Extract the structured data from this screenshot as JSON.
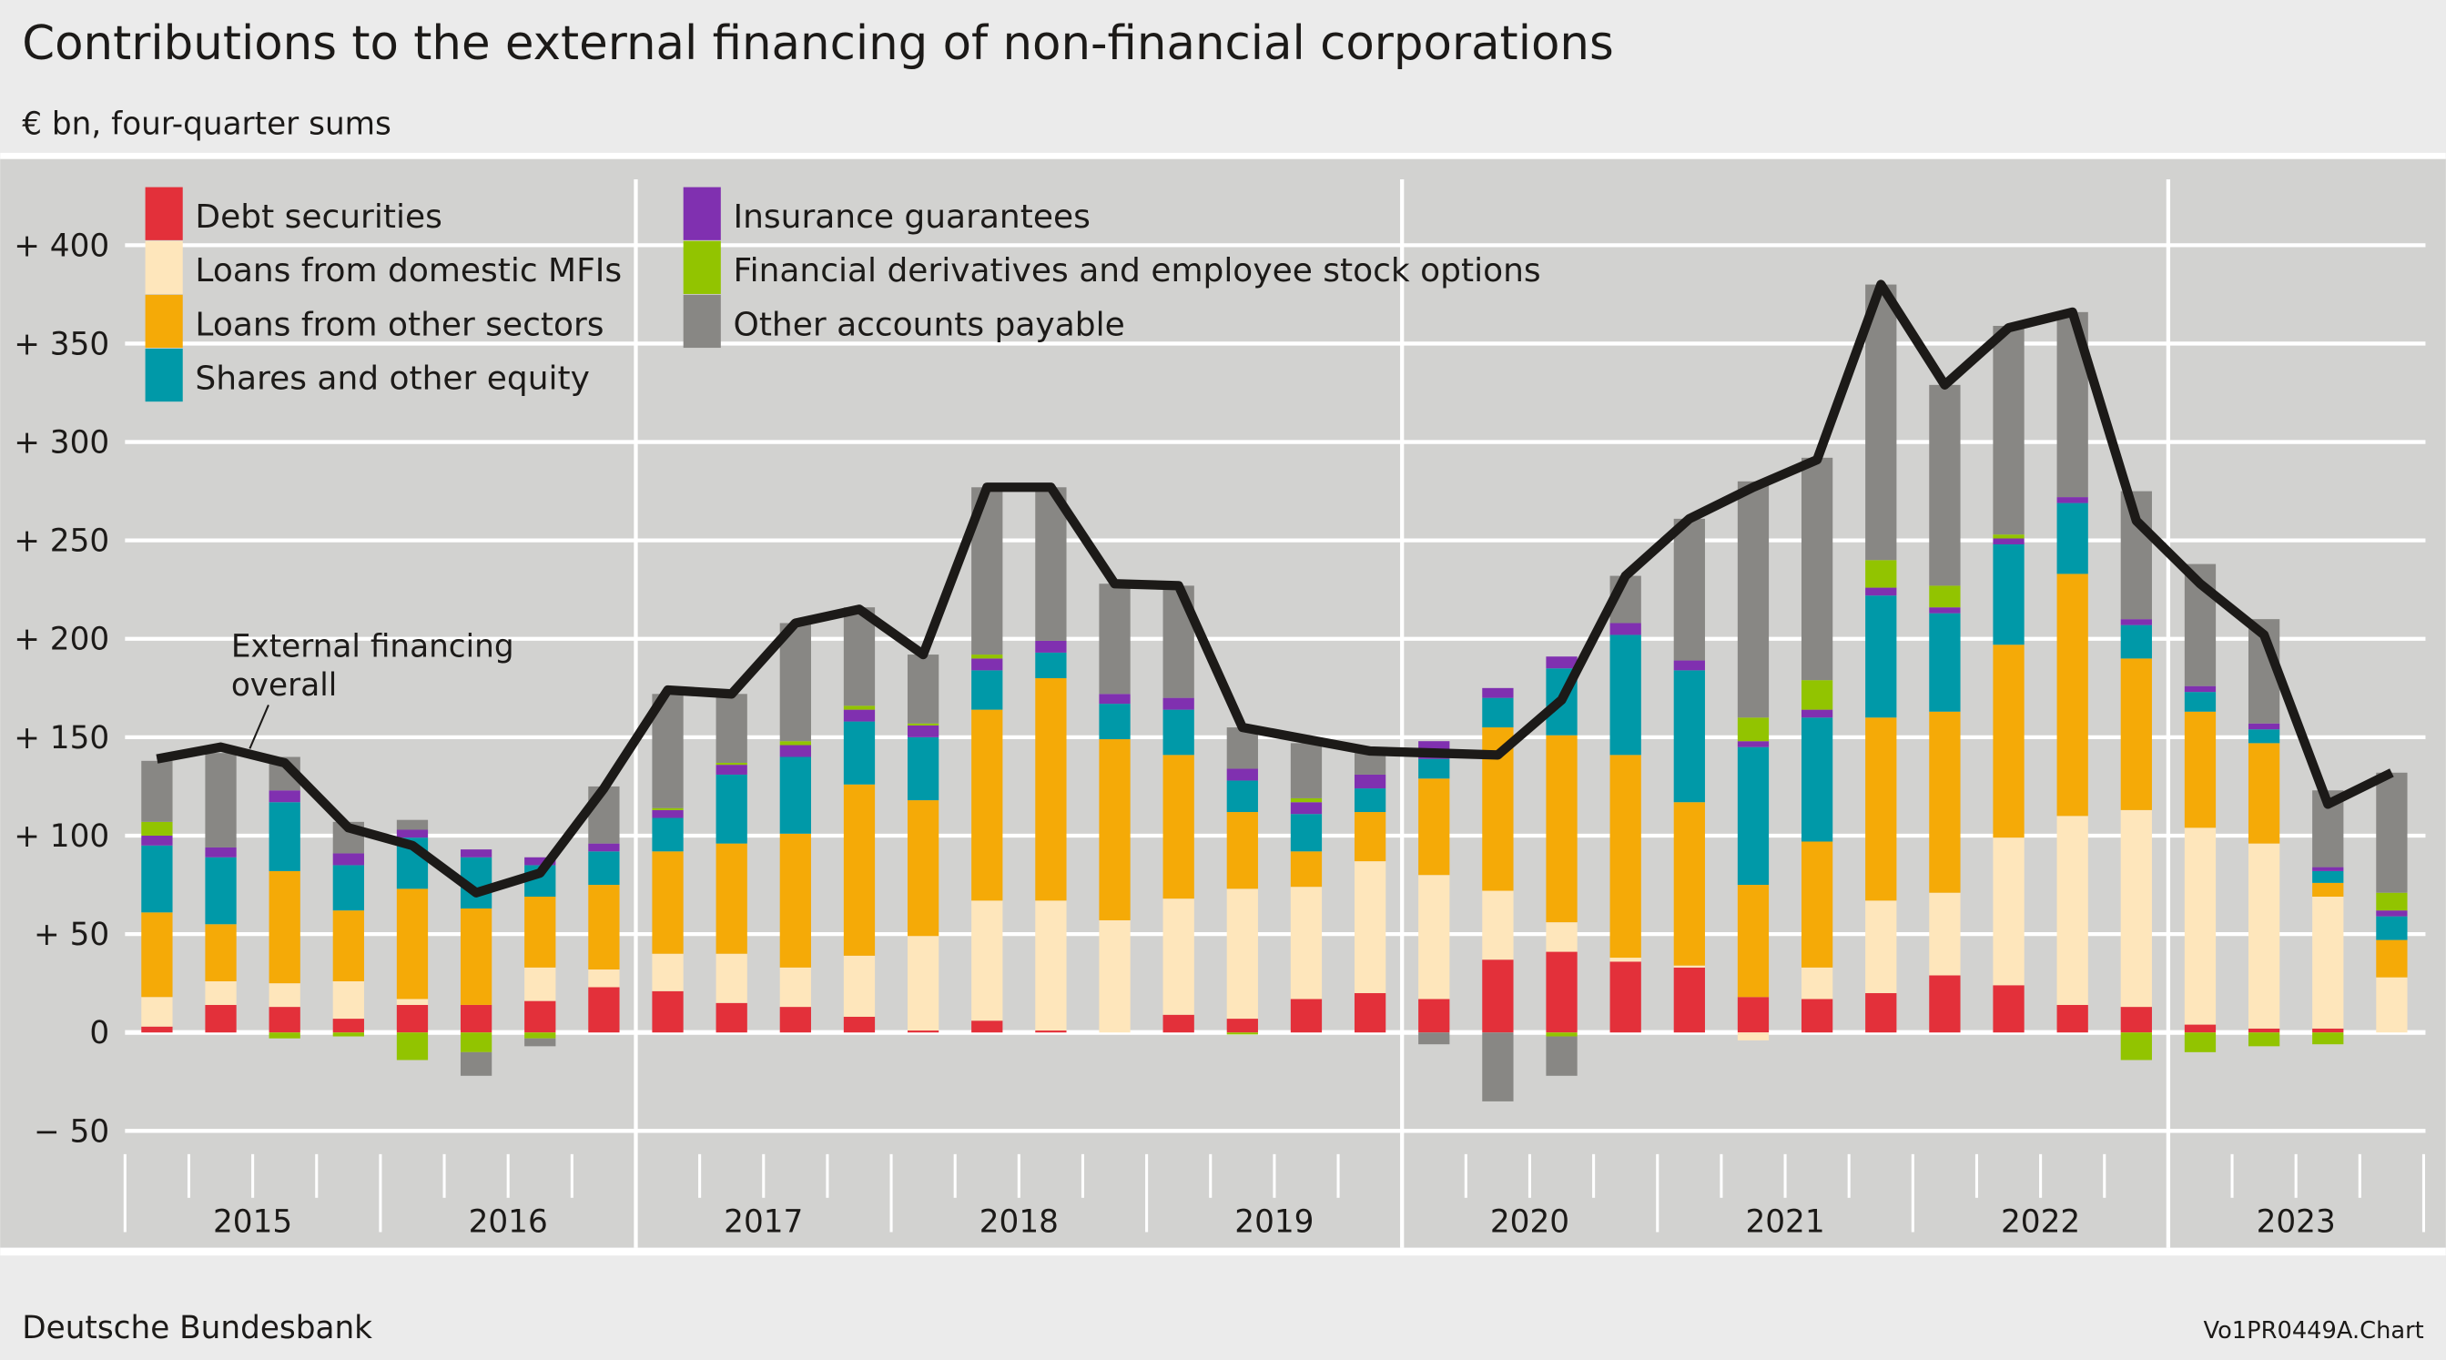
{
  "header": {
    "title": "Contributions to the external financing of non-financial corporations",
    "subtitle": "€ bn, four-quarter sums"
  },
  "footer": {
    "source": "Deutsche Bundesbank",
    "chart_id": "Vo1PR0449A.Chart"
  },
  "chart_data": {
    "type": "bar",
    "stacked": true,
    "title": "Contributions to the external financing of non-financial corporations",
    "ylabel": "€ bn, four-quarter sums",
    "ylim": [
      -50,
      430
    ],
    "yticks": [
      400,
      350,
      300,
      250,
      200,
      150,
      100,
      50,
      0,
      -50
    ],
    "ytick_labels": [
      "+ 400",
      "+ 350",
      "+ 300",
      "+ 250",
      "+ 200",
      "+ 150",
      "+ 100",
      "+  50",
      "0",
      "−  50"
    ],
    "grid": true,
    "legend_position": "top-left",
    "year_labels": [
      "2015",
      "2016",
      "2017",
      "2018",
      "2019",
      "2020",
      "2021",
      "2022",
      "2023"
    ],
    "x": [
      "2015Q1",
      "2015Q2",
      "2015Q3",
      "2015Q4",
      "2016Q1",
      "2016Q2",
      "2016Q3",
      "2016Q4",
      "2017Q1",
      "2017Q2",
      "2017Q3",
      "2017Q4",
      "2018Q1",
      "2018Q2",
      "2018Q3",
      "2018Q4",
      "2019Q1",
      "2019Q2",
      "2019Q3",
      "2019Q4",
      "2020Q1",
      "2020Q2",
      "2020Q3",
      "2020Q4",
      "2021Q1",
      "2021Q2",
      "2021Q3",
      "2021Q4",
      "2022Q1",
      "2022Q2",
      "2022Q3",
      "2022Q4",
      "2023Q1",
      "2023Q2",
      "2023Q3",
      "2023Q4"
    ],
    "series": [
      {
        "name": "Debt securities",
        "color": "#e3303a",
        "values": [
          3,
          14,
          13,
          7,
          14,
          14,
          16,
          23,
          21,
          15,
          13,
          8,
          1,
          6,
          1,
          0,
          9,
          7,
          17,
          20,
          17,
          37,
          41,
          36,
          33,
          18,
          17,
          20,
          29,
          24,
          14,
          13,
          4,
          2,
          2,
          0
        ]
      },
      {
        "name": "Loans from domestic MFIs",
        "color": "#fee6bb",
        "values": [
          15,
          12,
          12,
          19,
          3,
          0,
          17,
          9,
          19,
          25,
          20,
          31,
          48,
          61,
          66,
          57,
          59,
          66,
          57,
          67,
          63,
          35,
          15,
          2,
          1,
          -4,
          16,
          47,
          42,
          75,
          96,
          100,
          100,
          94,
          67,
          28
        ]
      },
      {
        "name": "Loans from other sectors",
        "color": "#f5aa07",
        "values": [
          43,
          29,
          57,
          36,
          56,
          49,
          36,
          43,
          52,
          56,
          68,
          87,
          69,
          97,
          113,
          92,
          73,
          39,
          18,
          25,
          49,
          83,
          95,
          103,
          83,
          57,
          64,
          93,
          92,
          98,
          123,
          77,
          59,
          51,
          7,
          19
        ]
      },
      {
        "name": "Shares and other equity",
        "color": "#0099a8",
        "values": [
          34,
          34,
          35,
          23,
          26,
          26,
          16,
          17,
          17,
          35,
          39,
          32,
          32,
          20,
          13,
          18,
          23,
          16,
          19,
          12,
          10,
          15,
          34,
          61,
          67,
          70,
          63,
          62,
          50,
          51,
          36,
          17,
          10,
          7,
          6,
          12
        ]
      },
      {
        "name": "Insurance guarantees",
        "color": "#8030b0",
        "values": [
          5,
          5,
          6,
          6,
          4,
          4,
          4,
          4,
          4,
          5,
          6,
          6,
          6,
          6,
          6,
          5,
          6,
          6,
          6,
          7,
          9,
          5,
          6,
          6,
          5,
          3,
          4,
          4,
          3,
          3,
          3,
          3,
          3,
          3,
          2,
          3
        ]
      },
      {
        "name": "Financial derivatives and employee stock options",
        "color": "#92c400",
        "values": [
          7,
          0,
          -3,
          -2,
          -14,
          -10,
          -3,
          0,
          1,
          1,
          2,
          2,
          1,
          2,
          0,
          0,
          0,
          -1,
          2,
          0,
          0,
          0,
          -2,
          0,
          0,
          12,
          15,
          14,
          11,
          2,
          0,
          -14,
          -10,
          -7,
          -6,
          9
        ]
      },
      {
        "name": "Other accounts payable",
        "color": "#888784",
        "values": [
          31,
          48,
          17,
          16,
          5,
          -12,
          -4,
          29,
          58,
          35,
          60,
          50,
          35,
          85,
          78,
          56,
          57,
          21,
          28,
          11,
          -6,
          -35,
          -20,
          24,
          72,
          120,
          113,
          140,
          102,
          106,
          94,
          65,
          62,
          53,
          39,
          61
        ]
      }
    ],
    "line": {
      "name": "External financing overall",
      "color": "#1c1a18",
      "values": [
        139,
        145,
        137,
        104,
        95,
        71,
        81,
        124,
        174,
        172,
        208,
        215,
        192,
        277,
        277,
        228,
        227,
        155,
        149,
        143,
        142,
        141,
        169,
        232,
        261,
        277,
        291,
        380,
        329,
        358,
        366,
        260,
        228,
        202,
        116,
        132
      ]
    }
  }
}
